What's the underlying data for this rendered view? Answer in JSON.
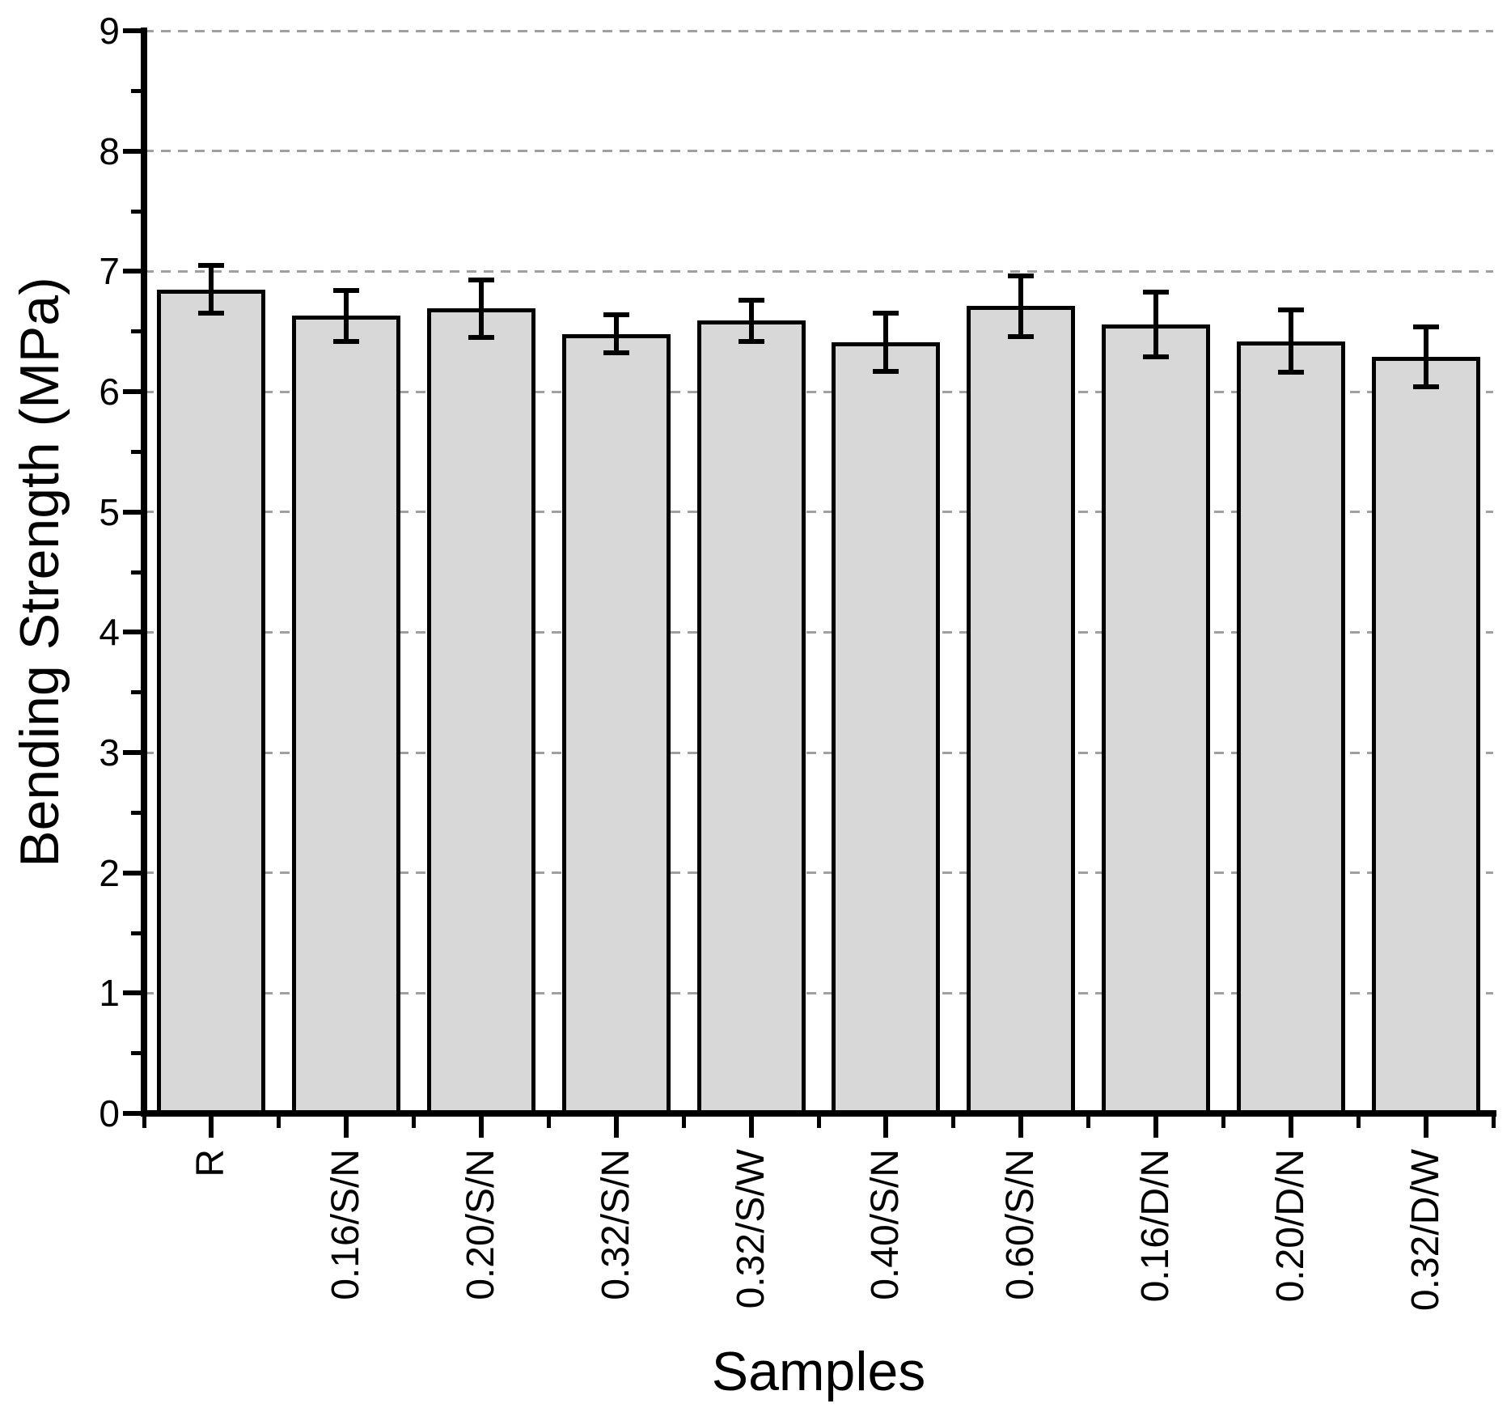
{
  "chart_data": {
    "type": "bar",
    "title": "",
    "xlabel": "Samples",
    "ylabel": "Bending Strength (MPa)",
    "categories": [
      "R",
      "0.16/S/N",
      "0.20/S/N",
      "0.32/S/N",
      "0.32/S/W",
      "0.40/S/N",
      "0.60/S/N",
      "0.16/D/N",
      "0.20/D/N",
      "0.32/D/W"
    ],
    "values": [
      6.85,
      6.63,
      6.69,
      6.48,
      6.59,
      6.41,
      6.71,
      6.56,
      6.42,
      6.29
    ],
    "errors": [
      0.2,
      0.21,
      0.24,
      0.16,
      0.17,
      0.24,
      0.25,
      0.27,
      0.26,
      0.25
    ],
    "ylim": [
      0,
      9
    ],
    "yticks": [
      0,
      1,
      2,
      3,
      4,
      5,
      6,
      7,
      8,
      9
    ],
    "ytick_labels": [
      "0",
      "1",
      "2",
      "3",
      "4",
      "5",
      "6",
      "7",
      "8",
      "9"
    ],
    "yminor_step": 0.5,
    "grid": {
      "horizontal": true,
      "style": "dashed",
      "at_values": [
        1,
        2,
        3,
        4,
        5,
        6,
        7,
        8,
        9
      ]
    },
    "legend": null,
    "colors": {
      "bar_fill": "#d8d8d8",
      "bar_edge": "#000000",
      "error_bar": "#000000",
      "gridline": "#a0a0a0",
      "axis": "#000000",
      "text": "#000000",
      "background": "#ffffff"
    }
  }
}
